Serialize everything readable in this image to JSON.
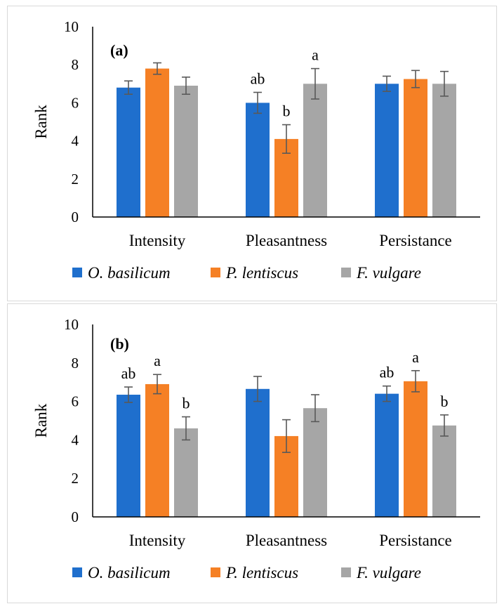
{
  "chart_data": [
    {
      "type": "bar",
      "panel_label": "(a)",
      "ylabel": "Rank",
      "xlabel": "",
      "ylim": [
        0,
        10
      ],
      "yticks": [
        0,
        2,
        4,
        6,
        8,
        10
      ],
      "categories": [
        "Intensity",
        "Pleasantness",
        "Persistance"
      ],
      "series": [
        {
          "name": "O. basilicum",
          "color": "#1f6fcd",
          "values": [
            6.8,
            6.0,
            7.0
          ],
          "errors": [
            0.35,
            0.55,
            0.4
          ],
          "labels": [
            "",
            "ab",
            ""
          ]
        },
        {
          "name": "P. lentiscus",
          "color": "#f58025",
          "values": [
            7.8,
            4.1,
            7.25
          ],
          "errors": [
            0.3,
            0.75,
            0.45
          ],
          "labels": [
            "",
            "b",
            ""
          ]
        },
        {
          "name": "F. vulgare",
          "color": "#a6a6a6",
          "values": [
            6.9,
            7.0,
            7.0
          ],
          "errors": [
            0.45,
            0.8,
            0.65
          ],
          "labels": [
            "",
            "a",
            ""
          ]
        }
      ],
      "legend": "bottom"
    },
    {
      "type": "bar",
      "panel_label": "(b)",
      "ylabel": "Rank",
      "xlabel": "",
      "ylim": [
        0,
        10
      ],
      "yticks": [
        0,
        2,
        4,
        6,
        8,
        10
      ],
      "categories": [
        "Intensity",
        "Pleasantness",
        "Persistance"
      ],
      "series": [
        {
          "name": "O. basilicum",
          "color": "#1f6fcd",
          "values": [
            6.35,
            6.65,
            6.4
          ],
          "errors": [
            0.4,
            0.65,
            0.4
          ],
          "labels": [
            "ab",
            "",
            "ab"
          ]
        },
        {
          "name": "P. lentiscus",
          "color": "#f58025",
          "values": [
            6.9,
            4.2,
            7.05
          ],
          "errors": [
            0.5,
            0.85,
            0.55
          ],
          "labels": [
            "a",
            "",
            "a"
          ]
        },
        {
          "name": "F. vulgare",
          "color": "#a6a6a6",
          "values": [
            4.6,
            5.65,
            4.75
          ],
          "errors": [
            0.6,
            0.7,
            0.55
          ],
          "labels": [
            "b",
            "",
            "b"
          ]
        }
      ],
      "legend": "bottom"
    }
  ]
}
